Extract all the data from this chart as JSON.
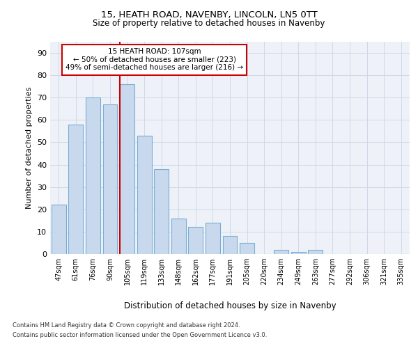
{
  "title1": "15, HEATH ROAD, NAVENBY, LINCOLN, LN5 0TT",
  "title2": "Size of property relative to detached houses in Navenby",
  "xlabel": "Distribution of detached houses by size in Navenby",
  "ylabel": "Number of detached properties",
  "categories": [
    "47sqm",
    "61sqm",
    "76sqm",
    "90sqm",
    "105sqm",
    "119sqm",
    "133sqm",
    "148sqm",
    "162sqm",
    "177sqm",
    "191sqm",
    "205sqm",
    "220sqm",
    "234sqm",
    "249sqm",
    "263sqm",
    "277sqm",
    "292sqm",
    "306sqm",
    "321sqm",
    "335sqm"
  ],
  "values": [
    22,
    58,
    70,
    67,
    76,
    53,
    38,
    16,
    12,
    14,
    8,
    5,
    0,
    2,
    1,
    2,
    0,
    0,
    0,
    0,
    0
  ],
  "bar_color": "#c9d9ed",
  "bar_edge_color": "#7aadd4",
  "vline_color": "#cc0000",
  "annotation_lines": [
    "15 HEATH ROAD: 107sqm",
    "← 50% of detached houses are smaller (223)",
    "49% of semi-detached houses are larger (216) →"
  ],
  "annotation_box_color": "#cc0000",
  "ylim": [
    0,
    95
  ],
  "yticks": [
    0,
    10,
    20,
    30,
    40,
    50,
    60,
    70,
    80,
    90
  ],
  "grid_color": "#d0d8e8",
  "background_color": "#eef2f8",
  "footnote1": "Contains HM Land Registry data © Crown copyright and database right 2024.",
  "footnote2": "Contains public sector information licensed under the Open Government Licence v3.0."
}
